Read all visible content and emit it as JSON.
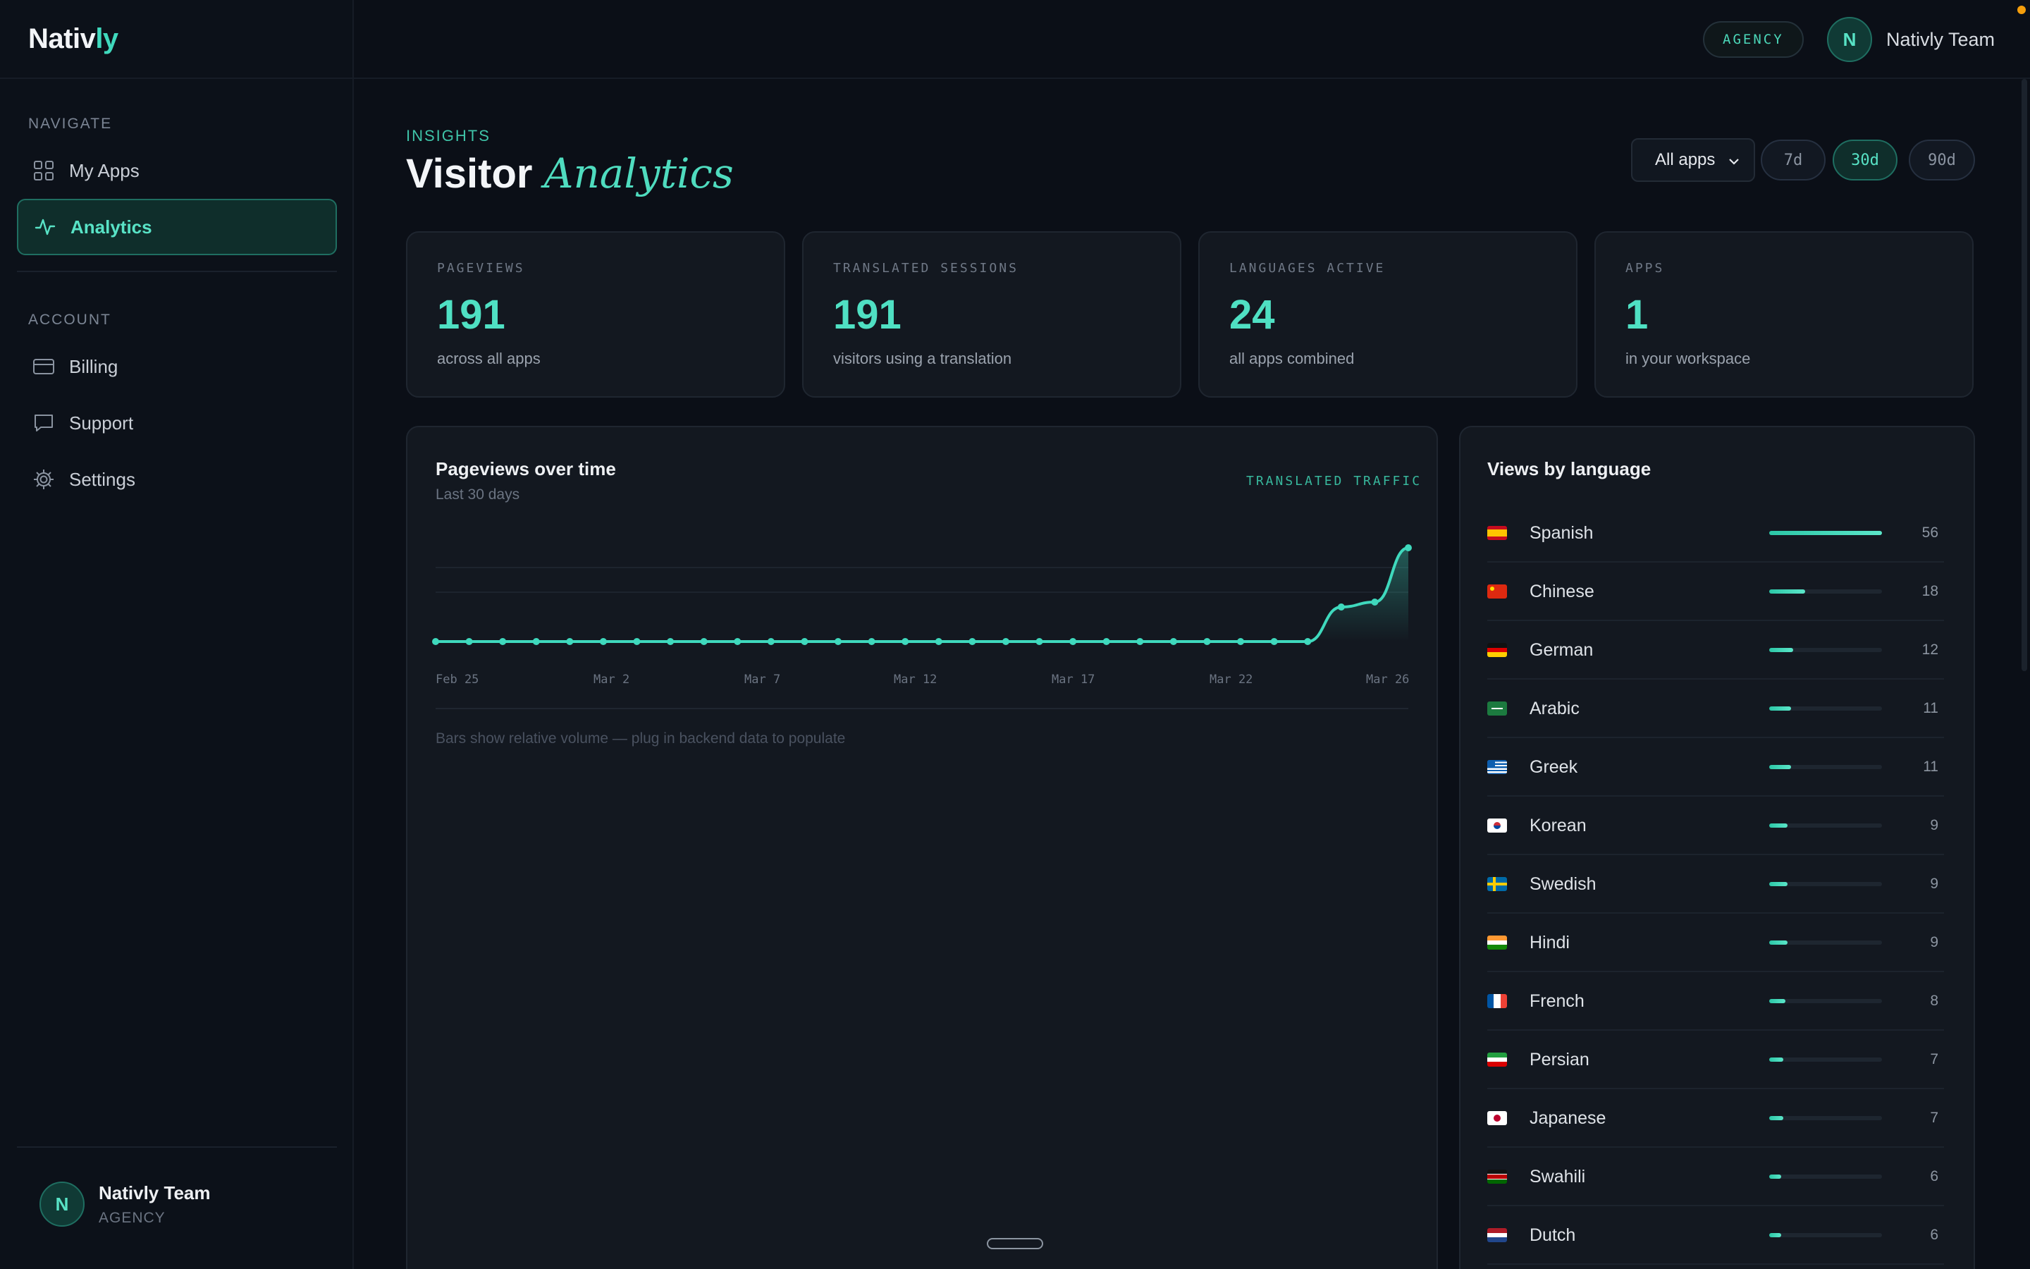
{
  "brand": {
    "prefix": "Nativ",
    "accent": "ly"
  },
  "sidebar": {
    "navigate_label": "NAVIGATE",
    "account_label": "ACCOUNT",
    "items": [
      {
        "label": "My Apps",
        "icon": "grid-icon"
      },
      {
        "label": "Analytics",
        "icon": "activity-icon"
      },
      {
        "label": "Billing",
        "icon": "credit-card-icon"
      },
      {
        "label": "Support",
        "icon": "message-icon"
      },
      {
        "label": "Settings",
        "icon": "gear-icon"
      }
    ],
    "user": {
      "initial": "N",
      "name": "Nativly Team",
      "role": "AGENCY"
    }
  },
  "topbar": {
    "badge": "AGENCY",
    "user_initial": "N",
    "user_name": "Nativly Team"
  },
  "header": {
    "eyebrow": "INSIGHTS",
    "title_main": "Visitor",
    "title_italic": "Analytics"
  },
  "filters": {
    "app_select": "All apps",
    "ranges": [
      "7d",
      "30d",
      "90d"
    ],
    "active_range": "30d"
  },
  "stats": [
    {
      "label": "PAGEVIEWS",
      "value": "191",
      "sub": "across all apps"
    },
    {
      "label": "TRANSLATED SESSIONS",
      "value": "191",
      "sub": "visitors using a translation"
    },
    {
      "label": "LANGUAGES ACTIVE",
      "value": "24",
      "sub": "all apps combined"
    },
    {
      "label": "APPS",
      "value": "1",
      "sub": "in your workspace"
    }
  ],
  "chart_panel": {
    "title": "Pageviews over time",
    "subtitle": "Last 30 days",
    "tag": "TRANSLATED TRAFFIC",
    "hint": "Bars show relative volume — plug in backend data to populate"
  },
  "chart_data": {
    "type": "line",
    "x_ticks": [
      "Feb 25",
      "Mar 2",
      "Mar 7",
      "Mar 12",
      "Mar 17",
      "Mar 22",
      "Mar 26"
    ],
    "values": [
      0,
      0,
      0,
      0,
      0,
      0,
      0,
      0,
      0,
      0,
      0,
      0,
      0,
      0,
      0,
      0,
      0,
      0,
      0,
      0,
      0,
      0,
      0,
      0,
      0,
      0,
      0,
      35,
      40,
      95
    ],
    "ylim": [
      0,
      100
    ],
    "grid": true,
    "color": "#3fd9bd"
  },
  "languages_panel": {
    "title": "Views by language",
    "max": 56,
    "rows": [
      {
        "name": "Spanish",
        "count": 56,
        "flag": "es"
      },
      {
        "name": "Chinese",
        "count": 18,
        "flag": "cn"
      },
      {
        "name": "German",
        "count": 12,
        "flag": "de"
      },
      {
        "name": "Arabic",
        "count": 11,
        "flag": "sa"
      },
      {
        "name": "Greek",
        "count": 11,
        "flag": "gr"
      },
      {
        "name": "Korean",
        "count": 9,
        "flag": "kr"
      },
      {
        "name": "Swedish",
        "count": 9,
        "flag": "se"
      },
      {
        "name": "Hindi",
        "count": 9,
        "flag": "in"
      },
      {
        "name": "French",
        "count": 8,
        "flag": "fr"
      },
      {
        "name": "Persian",
        "count": 7,
        "flag": "ir"
      },
      {
        "name": "Japanese",
        "count": 7,
        "flag": "jp"
      },
      {
        "name": "Swahili",
        "count": 6,
        "flag": "ke"
      },
      {
        "name": "Dutch",
        "count": 6,
        "flag": "nl"
      }
    ]
  }
}
